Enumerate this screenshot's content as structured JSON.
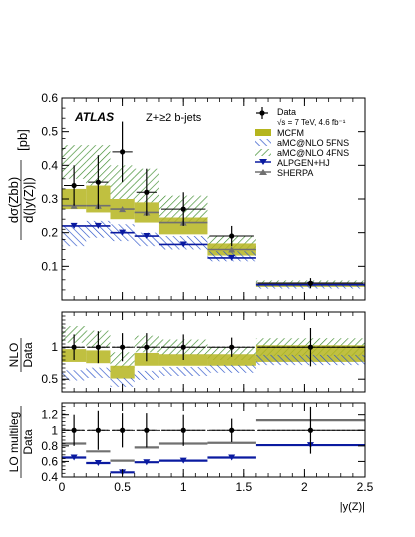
{
  "chart_data": {
    "type": "line",
    "experiment": "ATLAS",
    "selection": "Z+≥2 b-jets",
    "xlabel": "|y(Z)|",
    "x_ticks": [
      "0",
      "0.5",
      "1",
      "1.5",
      "2",
      "2.5"
    ],
    "x_range": [
      0,
      2.5
    ],
    "bin_edges": [
      0,
      0.2,
      0.4,
      0.6,
      0.8,
      1.2,
      1.6,
      2.5
    ],
    "colors": {
      "data": "#000000",
      "mcfm": "#b5b51e",
      "amc5": "#2750c8",
      "amc4": "#3a8a2a",
      "alpgen": "#0a1aa0",
      "sherpa": "#707070",
      "frame": "#000000"
    },
    "legend": {
      "data_label": "Data",
      "data_sublabel": "√s = 7 TeV, 4.6 fb⁻¹",
      "mcfm": "MCFM",
      "amc5": "aMC@NLO 5FNS",
      "amc4": "aMC@NLO 4FNS",
      "alpgen": "ALPGEN+HJ",
      "sherpa": "SHERPA"
    },
    "main": {
      "ylabel_top": "dσ(Zbb)",
      "ylabel_bottom": "d(|y(Z)|)",
      "ylabel_unit": "[pb]",
      "ylim": [
        0,
        0.6
      ],
      "y_ticks": [
        "0.1",
        "0.2",
        "0.3",
        "0.4",
        "0.5",
        "0.6"
      ],
      "data": [
        0.34,
        0.35,
        0.44,
        0.32,
        0.27,
        0.19,
        0.05
      ],
      "data_err": [
        0.06,
        0.08,
        0.09,
        0.07,
        0.05,
        0.03,
        0.015
      ],
      "mcfm": [
        0.3,
        0.3,
        0.27,
        0.26,
        0.22,
        0.15,
        0.045
      ],
      "mcfm_err": [
        0.03,
        0.04,
        0.03,
        0.03,
        0.025,
        0.018,
        0.006
      ],
      "amc5": [
        0.19,
        0.21,
        0.2,
        0.18,
        0.17,
        0.13,
        0.04
      ],
      "amc5_err": [
        0.03,
        0.025,
        0.025,
        0.02,
        0.02,
        0.015,
        0.006
      ],
      "amc4": [
        0.41,
        0.4,
        0.35,
        0.34,
        0.27,
        0.17,
        0.05
      ],
      "amc4_err": [
        0.05,
        0.06,
        0.05,
        0.05,
        0.04,
        0.02,
        0.008
      ],
      "alpgen": [
        0.22,
        0.22,
        0.2,
        0.19,
        0.165,
        0.125,
        0.045
      ],
      "sherpa": [
        0.28,
        0.28,
        0.27,
        0.26,
        0.23,
        0.15,
        0.05
      ]
    },
    "nlo_ratio": {
      "ylabel_top": "NLO",
      "ylabel_bottom": "Data",
      "ylim": [
        0.3,
        1.55
      ],
      "y_ticks": [
        "0.5",
        "1"
      ],
      "data": [
        1,
        1,
        1,
        1,
        1,
        1,
        1
      ],
      "data_err": [
        0.2,
        0.25,
        0.22,
        0.22,
        0.2,
        0.15,
        0.3
      ],
      "mcfm": [
        0.87,
        0.85,
        0.61,
        0.81,
        0.8,
        0.8,
        0.9
      ],
      "mcfm_err": [
        0.1,
        0.1,
        0.1,
        0.1,
        0.09,
        0.09,
        0.13
      ],
      "amc4": [
        1.2,
        1.13,
        0.8,
        1.05,
        1.0,
        0.9,
        1.0
      ],
      "amc4_err": [
        0.13,
        0.13,
        0.12,
        0.13,
        0.12,
        0.1,
        0.14
      ],
      "amc5": [
        0.56,
        0.6,
        0.45,
        0.56,
        0.62,
        0.66,
        0.8
      ],
      "amc5_err": [
        0.08,
        0.08,
        0.07,
        0.07,
        0.07,
        0.06,
        0.08
      ]
    },
    "lo_ratio": {
      "ylabel_top": "LO multileg",
      "ylabel_bottom": "Data",
      "ylim": [
        0.4,
        1.35
      ],
      "y_ticks": [
        "0.4",
        "0.6",
        "0.8",
        "1",
        "1.2"
      ],
      "data": [
        1,
        1,
        1,
        1,
        1,
        1,
        1
      ],
      "data_err": [
        0.2,
        0.25,
        0.22,
        0.22,
        0.2,
        0.15,
        0.3
      ],
      "alpgen": [
        0.65,
        0.58,
        0.46,
        0.59,
        0.61,
        0.65,
        0.81
      ],
      "sherpa": [
        0.83,
        0.73,
        0.61,
        0.78,
        0.83,
        0.84,
        1.13
      ]
    }
  }
}
